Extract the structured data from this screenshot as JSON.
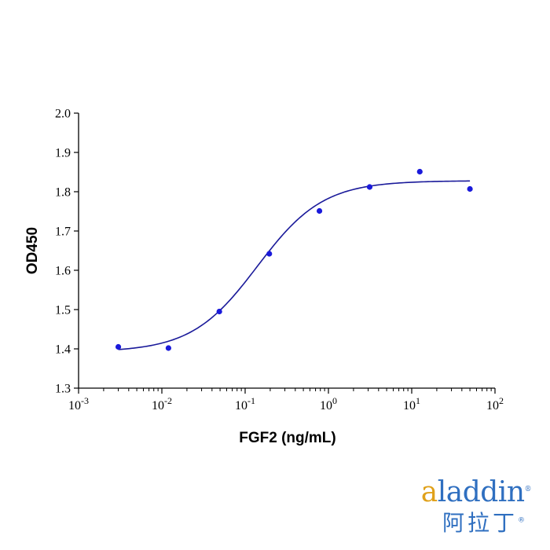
{
  "chart_data": {
    "type": "scatter",
    "x_scale": "log",
    "xlabel": "FGF2 (ng/mL)",
    "ylabel": "OD450",
    "xlim": [
      0.001,
      100
    ],
    "ylim": [
      1.3,
      2.0
    ],
    "x_ticks": [
      {
        "base": "10",
        "exp": "-3"
      },
      {
        "base": "10",
        "exp": "-2"
      },
      {
        "base": "10",
        "exp": "-1"
      },
      {
        "base": "10",
        "exp": "0"
      },
      {
        "base": "10",
        "exp": "1"
      },
      {
        "base": "10",
        "exp": "2"
      }
    ],
    "y_ticks": [
      "1.3",
      "1.4",
      "1.5",
      "1.6",
      "1.7",
      "1.8",
      "1.9",
      "2.0"
    ],
    "series": [
      {
        "points": [
          {
            "x": 0.003,
            "y": 1.405
          },
          {
            "x": 0.012,
            "y": 1.402
          },
          {
            "x": 0.049,
            "y": 1.495
          },
          {
            "x": 0.195,
            "y": 1.642
          },
          {
            "x": 0.78,
            "y": 1.751
          },
          {
            "x": 3.125,
            "y": 1.812
          },
          {
            "x": 12.5,
            "y": 1.851
          },
          {
            "x": 50,
            "y": 1.807
          }
        ]
      }
    ],
    "fit_curve": {
      "model": "4PL",
      "bottom": 1.392,
      "top": 1.828,
      "ec50": 0.14,
      "hill": 1.1,
      "x_range": [
        0.003,
        50
      ]
    },
    "colors": {
      "points": "#1a1adb",
      "curve": "#1a1a9a",
      "axis": "#000000"
    },
    "grid": false
  },
  "logo": {
    "accent": "a",
    "rest": "laddin",
    "reg": "®",
    "cn": "阿拉丁",
    "cn_reg": "®"
  }
}
